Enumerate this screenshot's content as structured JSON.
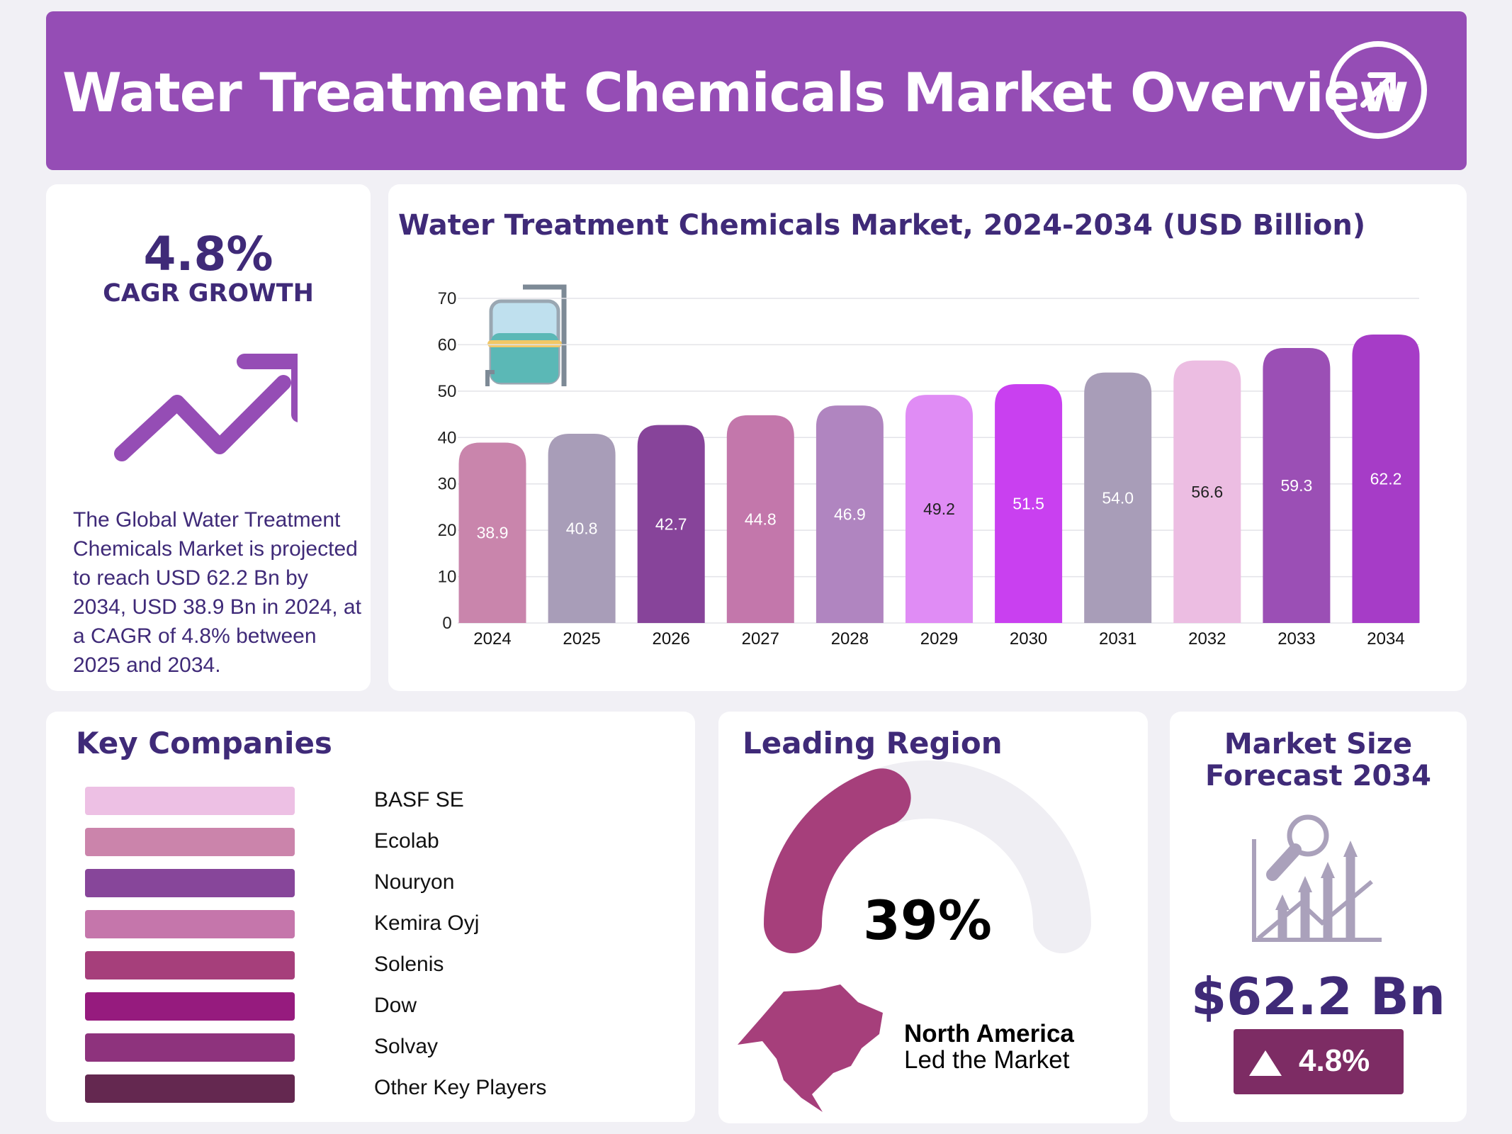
{
  "header": {
    "title": "Water Treatment Chemicals Market Overview",
    "icon": "arrow-up-right-circle-icon"
  },
  "summary": {
    "cagr_value": "4.8%",
    "cagr_label": "CAGR GROWTH",
    "icon": "trend-up-arrow-icon",
    "description": "The Global Water Treatment Chemicals Market is projected to reach USD 62.2 Bn by 2034, USD 38.9 Bn in 2024, at a CAGR of 4.8% between 2025 and 2034."
  },
  "chart_data": {
    "type": "bar",
    "title": "Water Treatment Chemicals Market, 2024-2034 (USD Billion)",
    "categories": [
      "2024",
      "2025",
      "2026",
      "2027",
      "2028",
      "2029",
      "2030",
      "2031",
      "2032",
      "2033",
      "2034"
    ],
    "values": [
      38.9,
      40.8,
      42.7,
      44.8,
      46.9,
      49.2,
      51.5,
      54.0,
      56.6,
      59.3,
      62.2
    ],
    "value_labels": [
      "38.9",
      "40.8",
      "42.7",
      "44.8",
      "46.9",
      "49.2",
      "51.5",
      "54.0",
      "56.6",
      "59.3",
      "62.2"
    ],
    "colors": [
      "#c985ac",
      "#a89db8",
      "#87449a",
      "#c377ab",
      "#b085c0",
      "#e08cf5",
      "#c940f0",
      "#a89db8",
      "#ecbde2",
      "#9b4fb5",
      "#a63cc7"
    ],
    "label_colors": [
      "#fff",
      "#fff",
      "#fff",
      "#fff",
      "#fff",
      "#222",
      "#fff",
      "#fff",
      "#222",
      "#fff",
      "#fff"
    ],
    "yticks": [
      "0",
      "10",
      "20",
      "30",
      "40",
      "50",
      "60",
      "70"
    ],
    "ylim": [
      0,
      70
    ],
    "grid": true,
    "xlabel": "",
    "ylabel": ""
  },
  "companies": {
    "title": "Key Companies",
    "items": [
      {
        "name": "BASF SE",
        "color": "#edc0e4"
      },
      {
        "name": "Ecolab",
        "color": "#cb84ab"
      },
      {
        "name": "Nouryon",
        "color": "#87469a"
      },
      {
        "name": "Kemira Oyj",
        "color": "#c576ab"
      },
      {
        "name": "Solenis",
        "color": "#a63f7b"
      },
      {
        "name": "Dow",
        "color": "#961b7e"
      },
      {
        "name": "Solvay",
        "color": "#8e337d"
      },
      {
        "name": "Other Key Players",
        "color": "#642850"
      }
    ]
  },
  "region": {
    "title": "Leading Region",
    "share_percent": 39,
    "share_label": "39%",
    "name": "North America",
    "subtitle": "Led the Market",
    "color": "#a63f7b"
  },
  "forecast": {
    "title_line1": "Market Size",
    "title_line2": "Forecast 2034",
    "value": "$62.2 Bn",
    "badge": "4.8%",
    "badge_color": "#7d2c64",
    "icon": "chart-magnifier-icon"
  }
}
